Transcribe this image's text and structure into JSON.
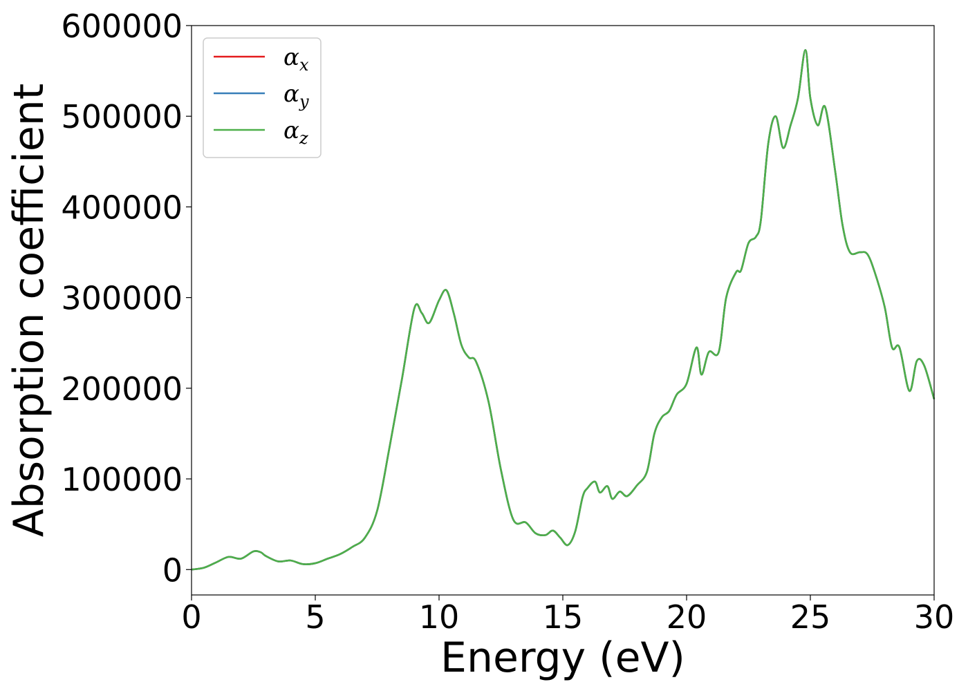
{
  "chart_data": {
    "type": "line",
    "title": "",
    "xlabel": "Energy (eV)",
    "ylabel": "Absorption coefficient",
    "xlim": [
      0,
      30
    ],
    "ylim": [
      -28000,
      600000
    ],
    "xticks": [
      0,
      5,
      10,
      15,
      20,
      25,
      30
    ],
    "xtick_labels": [
      "0",
      "5",
      "10",
      "15",
      "20",
      "25",
      "30"
    ],
    "yticks": [
      0,
      100000,
      200000,
      300000,
      400000,
      500000,
      600000
    ],
    "ytick_labels": [
      "0",
      "100000",
      "200000",
      "300000",
      "400000",
      "500000",
      "600000"
    ],
    "grid": false,
    "legend_position": "top-left",
    "x": [
      0,
      0.5,
      1.0,
      1.5,
      2.0,
      2.5,
      2.8,
      3.0,
      3.5,
      4.0,
      4.5,
      5.0,
      5.5,
      6.0,
      6.5,
      7.0,
      7.5,
      8.0,
      8.5,
      9.0,
      9.3,
      9.6,
      10.0,
      10.3,
      10.6,
      10.9,
      11.2,
      11.5,
      12.0,
      12.5,
      13.0,
      13.5,
      13.9,
      14.3,
      14.6,
      14.9,
      15.2,
      15.5,
      15.8,
      16.0,
      16.3,
      16.5,
      16.8,
      17.0,
      17.3,
      17.6,
      18.0,
      18.4,
      18.7,
      19.0,
      19.3,
      19.6,
      20.0,
      20.4,
      20.6,
      20.9,
      21.3,
      21.6,
      22.0,
      22.2,
      22.5,
      22.8,
      23.0,
      23.3,
      23.6,
      23.9,
      24.2,
      24.5,
      24.8,
      25.0,
      25.3,
      25.6,
      26.0,
      26.3,
      26.6,
      27.0,
      27.3,
      27.6,
      28.0,
      28.3,
      28.6,
      29.0,
      29.3,
      29.6,
      30.0
    ],
    "series": [
      {
        "name": "α_x",
        "label_base": "α",
        "label_sub": "x",
        "color": "#e41a1c",
        "values": [
          0,
          2000,
          8000,
          14000,
          12000,
          20000,
          19000,
          15000,
          9000,
          10000,
          6000,
          7000,
          12000,
          17000,
          25000,
          35000,
          65000,
          135000,
          210000,
          288000,
          283000,
          272000,
          297000,
          308000,
          282000,
          248000,
          234000,
          229000,
          185000,
          110000,
          55000,
          52000,
          40000,
          38000,
          43000,
          35000,
          27000,
          42000,
          80000,
          90000,
          97000,
          85000,
          92000,
          78000,
          86000,
          81000,
          93000,
          108000,
          150000,
          168000,
          175000,
          193000,
          205000,
          245000,
          215000,
          240000,
          240000,
          300000,
          328000,
          330000,
          360000,
          367000,
          385000,
          470000,
          500000,
          465000,
          490000,
          520000,
          573000,
          520000,
          490000,
          510000,
          440000,
          380000,
          350000,
          350000,
          348000,
          328000,
          290000,
          245000,
          245000,
          197000,
          230000,
          225000,
          188000
        ]
      },
      {
        "name": "α_y",
        "label_base": "α",
        "label_sub": "y",
        "color": "#377eb8",
        "values": [
          0,
          2000,
          8000,
          14000,
          12000,
          20000,
          19000,
          15000,
          9000,
          10000,
          6000,
          7000,
          12000,
          17000,
          25000,
          35000,
          65000,
          135000,
          210000,
          288000,
          283000,
          272000,
          297000,
          308000,
          282000,
          248000,
          234000,
          229000,
          185000,
          110000,
          55000,
          52000,
          40000,
          38000,
          43000,
          35000,
          27000,
          42000,
          80000,
          90000,
          97000,
          85000,
          92000,
          78000,
          86000,
          81000,
          93000,
          108000,
          150000,
          168000,
          175000,
          193000,
          205000,
          245000,
          215000,
          240000,
          240000,
          300000,
          328000,
          330000,
          360000,
          367000,
          385000,
          470000,
          500000,
          465000,
          490000,
          520000,
          573000,
          520000,
          490000,
          510000,
          440000,
          380000,
          350000,
          350000,
          348000,
          328000,
          290000,
          245000,
          245000,
          197000,
          230000,
          225000,
          188000
        ]
      },
      {
        "name": "α_z",
        "label_base": "α",
        "label_sub": "z",
        "color": "#4daf4a",
        "values": [
          0,
          2000,
          8000,
          14000,
          12000,
          20000,
          19000,
          15000,
          9000,
          10000,
          6000,
          7000,
          12000,
          17000,
          25000,
          35000,
          65000,
          135000,
          210000,
          288000,
          283000,
          272000,
          297000,
          308000,
          282000,
          248000,
          234000,
          229000,
          185000,
          110000,
          55000,
          52000,
          40000,
          38000,
          43000,
          35000,
          27000,
          42000,
          80000,
          90000,
          97000,
          85000,
          92000,
          78000,
          86000,
          81000,
          93000,
          108000,
          150000,
          168000,
          175000,
          193000,
          205000,
          245000,
          215000,
          240000,
          240000,
          300000,
          328000,
          330000,
          360000,
          367000,
          385000,
          470000,
          500000,
          465000,
          490000,
          520000,
          573000,
          520000,
          490000,
          510000,
          440000,
          380000,
          350000,
          350000,
          348000,
          328000,
          290000,
          245000,
          245000,
          197000,
          230000,
          225000,
          188000
        ]
      }
    ]
  }
}
